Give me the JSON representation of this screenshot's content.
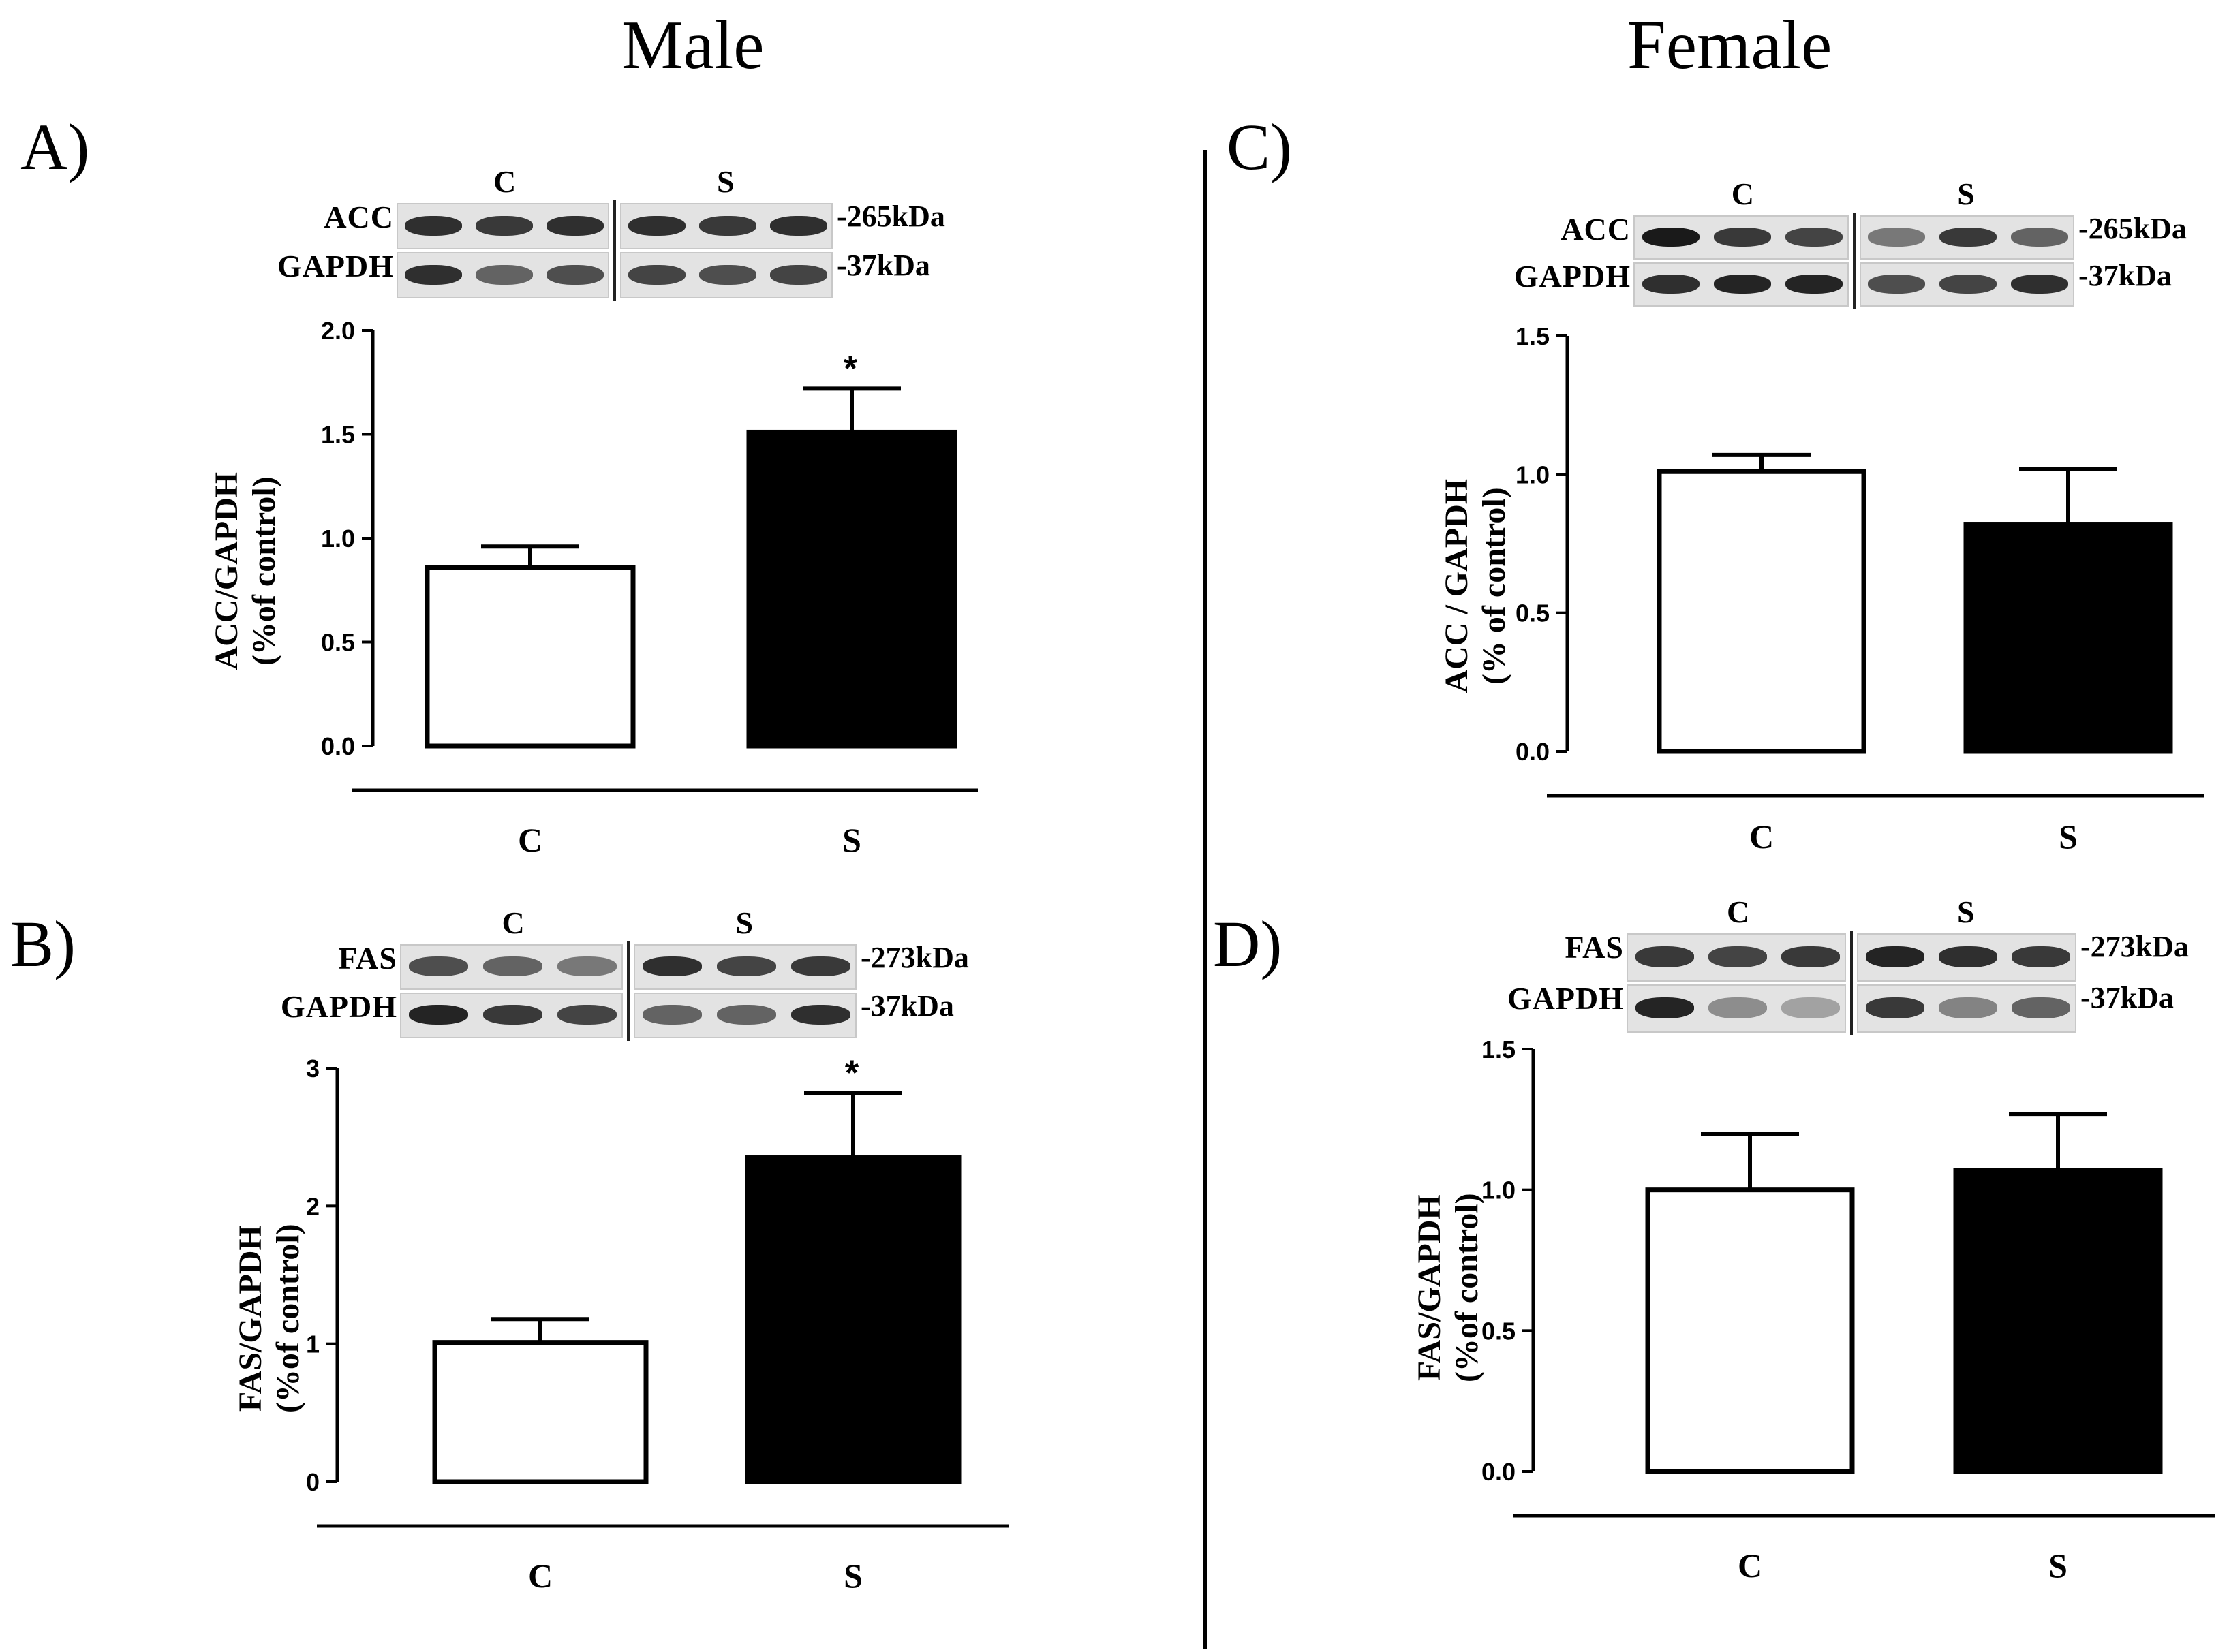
{
  "figure": {
    "columns": [
      "Male",
      "Female"
    ]
  },
  "panels": [
    {
      "id": "A",
      "label": "A)",
      "blot": {
        "groups": [
          "C",
          "S"
        ],
        "rows": [
          {
            "name": "ACC",
            "kda": "-265kDa",
            "c_intensity": [
              0.85,
              0.8,
              0.85
            ],
            "s_intensity": [
              0.85,
              0.8,
              0.85
            ]
          },
          {
            "name": "GAPDH",
            "kda": "-37kDa",
            "c_intensity": [
              0.85,
              0.6,
              0.7
            ],
            "s_intensity": [
              0.75,
              0.7,
              0.75
            ]
          }
        ]
      }
    },
    {
      "id": "B",
      "label": "B)",
      "blot": {
        "groups": [
          "C",
          "S"
        ],
        "rows": [
          {
            "name": "FAS",
            "kda": "-273kDa",
            "c_intensity": [
              0.7,
              0.6,
              0.5
            ],
            "s_intensity": [
              0.85,
              0.75,
              0.8
            ]
          },
          {
            "name": "GAPDH",
            "kda": "-37kDa",
            "c_intensity": [
              0.9,
              0.8,
              0.75
            ],
            "s_intensity": [
              0.6,
              0.6,
              0.85
            ]
          }
        ]
      }
    },
    {
      "id": "C",
      "label": "C)",
      "blot": {
        "groups": [
          "C",
          "S"
        ],
        "rows": [
          {
            "name": "ACC",
            "kda": "-265kDa",
            "c_intensity": [
              0.95,
              0.8,
              0.75
            ],
            "s_intensity": [
              0.5,
              0.8,
              0.6
            ]
          },
          {
            "name": "GAPDH",
            "kda": "-37kDa",
            "c_intensity": [
              0.85,
              0.9,
              0.9
            ],
            "s_intensity": [
              0.7,
              0.75,
              0.85
            ]
          }
        ]
      }
    },
    {
      "id": "D",
      "label": "D)",
      "blot": {
        "groups": [
          "C",
          "S"
        ],
        "rows": [
          {
            "name": "FAS",
            "kda": "-273kDa",
            "c_intensity": [
              0.8,
              0.75,
              0.8
            ],
            "s_intensity": [
              0.9,
              0.85,
              0.8
            ]
          },
          {
            "name": "GAPDH",
            "kda": "-37kDa",
            "c_intensity": [
              0.9,
              0.4,
              0.3
            ],
            "s_intensity": [
              0.8,
              0.45,
              0.6
            ]
          }
        ]
      }
    }
  ],
  "chart_data": [
    {
      "panel": "A",
      "type": "bar",
      "categories": [
        "C",
        "S"
      ],
      "values": [
        0.86,
        1.51
      ],
      "errors": [
        0.1,
        0.21
      ],
      "significance": [
        "",
        "*"
      ],
      "fills": [
        "#ffffff",
        "#000000"
      ],
      "ylabel": [
        "ACC/GAPDH",
        "(%of control)"
      ],
      "ylim": [
        0.0,
        2.0
      ],
      "yticks": [
        "0.0",
        "0.5",
        "1.0",
        "1.5",
        "2.0"
      ]
    },
    {
      "panel": "B",
      "type": "bar",
      "categories": [
        "C",
        "S"
      ],
      "values": [
        1.01,
        2.35
      ],
      "errors": [
        0.17,
        0.47
      ],
      "significance": [
        "",
        "*"
      ],
      "fills": [
        "#ffffff",
        "#000000"
      ],
      "ylabel": [
        "FAS/GAPDH",
        "(%of control)"
      ],
      "ylim": [
        0,
        3
      ],
      "yticks": [
        "0",
        "1",
        "2",
        "3"
      ]
    },
    {
      "panel": "C",
      "type": "bar",
      "categories": [
        "C",
        "S"
      ],
      "values": [
        1.01,
        0.82
      ],
      "errors": [
        0.06,
        0.2
      ],
      "significance": [
        "",
        ""
      ],
      "fills": [
        "#ffffff",
        "#000000"
      ],
      "ylabel": [
        "ACC  / GAPDH",
        "(%  of control)"
      ],
      "ylim": [
        0.0,
        1.5
      ],
      "yticks": [
        "0.0",
        "0.5",
        "1.0",
        "1.5"
      ]
    },
    {
      "panel": "D",
      "type": "bar",
      "categories": [
        "C",
        "S"
      ],
      "values": [
        1.0,
        1.07
      ],
      "errors": [
        0.2,
        0.2
      ],
      "significance": [
        "",
        ""
      ],
      "fills": [
        "#ffffff",
        "#000000"
      ],
      "ylabel": [
        "FAS/GAPDH",
        "(%of control)"
      ],
      "ylim": [
        0.0,
        1.5
      ],
      "yticks": [
        "0.0",
        "0.5",
        "1.0",
        "1.5"
      ]
    }
  ]
}
